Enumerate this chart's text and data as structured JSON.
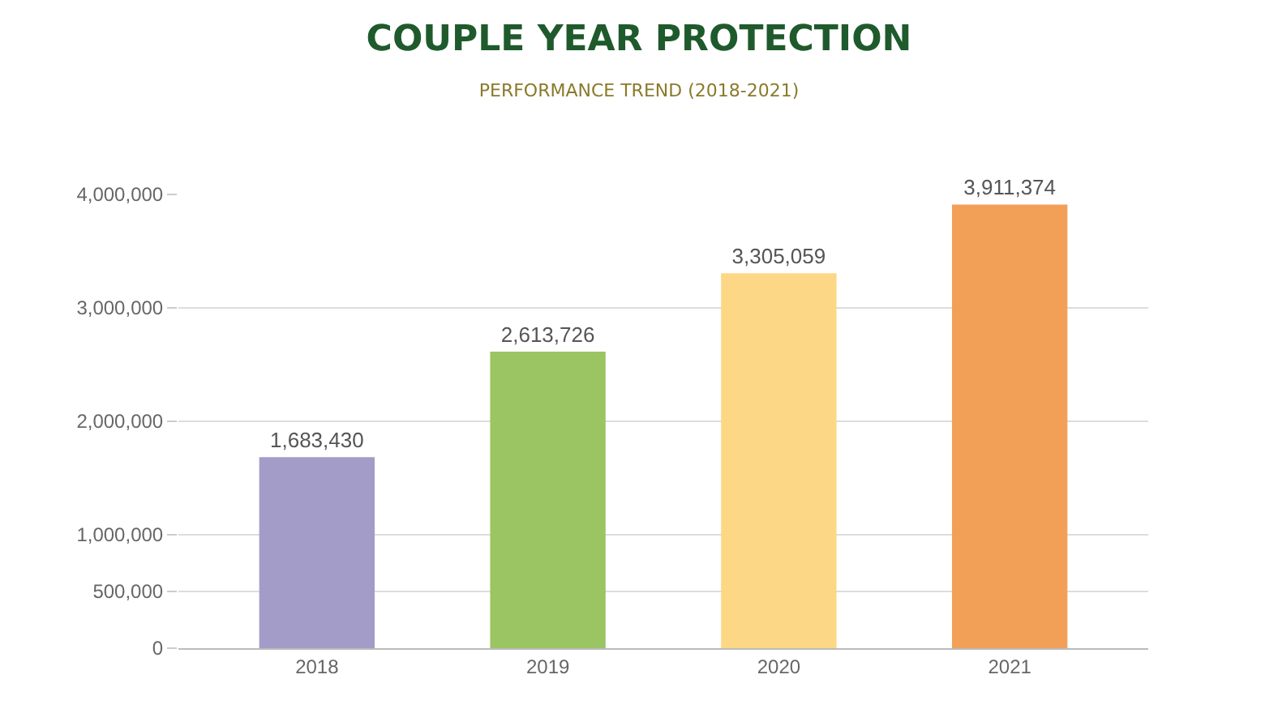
{
  "chart_data": {
    "type": "bar",
    "title": "COUPLE YEAR PROTECTION",
    "subtitle": "PERFORMANCE TREND (2018-2021)",
    "categories": [
      "2018",
      "2019",
      "2020",
      "2021"
    ],
    "values": [
      1683430,
      2613726,
      3305059,
      3911374
    ],
    "colors": [
      "#a39cc8",
      "#9bc463",
      "#fcd886",
      "#f2a057"
    ],
    "value_labels": [
      "1,683,430",
      "2,613,726",
      "3,305,059",
      "3,911,374"
    ],
    "ylim": [
      0,
      4000000
    ],
    "yticks": [
      {
        "value": 0,
        "label": "0"
      },
      {
        "value": 500000,
        "label": "500,000"
      },
      {
        "value": 1000000,
        "label": "1,000,000"
      },
      {
        "value": 2000000,
        "label": "2,000,000"
      },
      {
        "value": 3000000,
        "label": "3,000,000"
      },
      {
        "value": 4000000,
        "label": "4,000,000"
      }
    ],
    "grid": "y"
  }
}
